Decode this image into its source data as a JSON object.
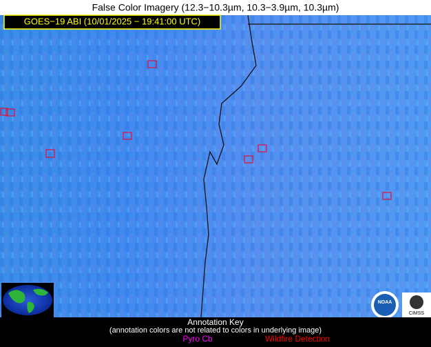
{
  "header": {
    "title": "False Color Imagery (12.3−10.3µm, 10.3−3.9µm, 10.3µm)"
  },
  "image_label": "GOES−19 ABI (10/01/2025 − 19:41:00 UTC)",
  "annotation_key": {
    "title": "Annotation Key",
    "note": "(annotation colors are not related to colors in underlying image)",
    "items": [
      "Pyro Cb",
      "Wildfire Detection"
    ]
  },
  "logos": [
    "NOAA",
    "CIMSS"
  ]
}
